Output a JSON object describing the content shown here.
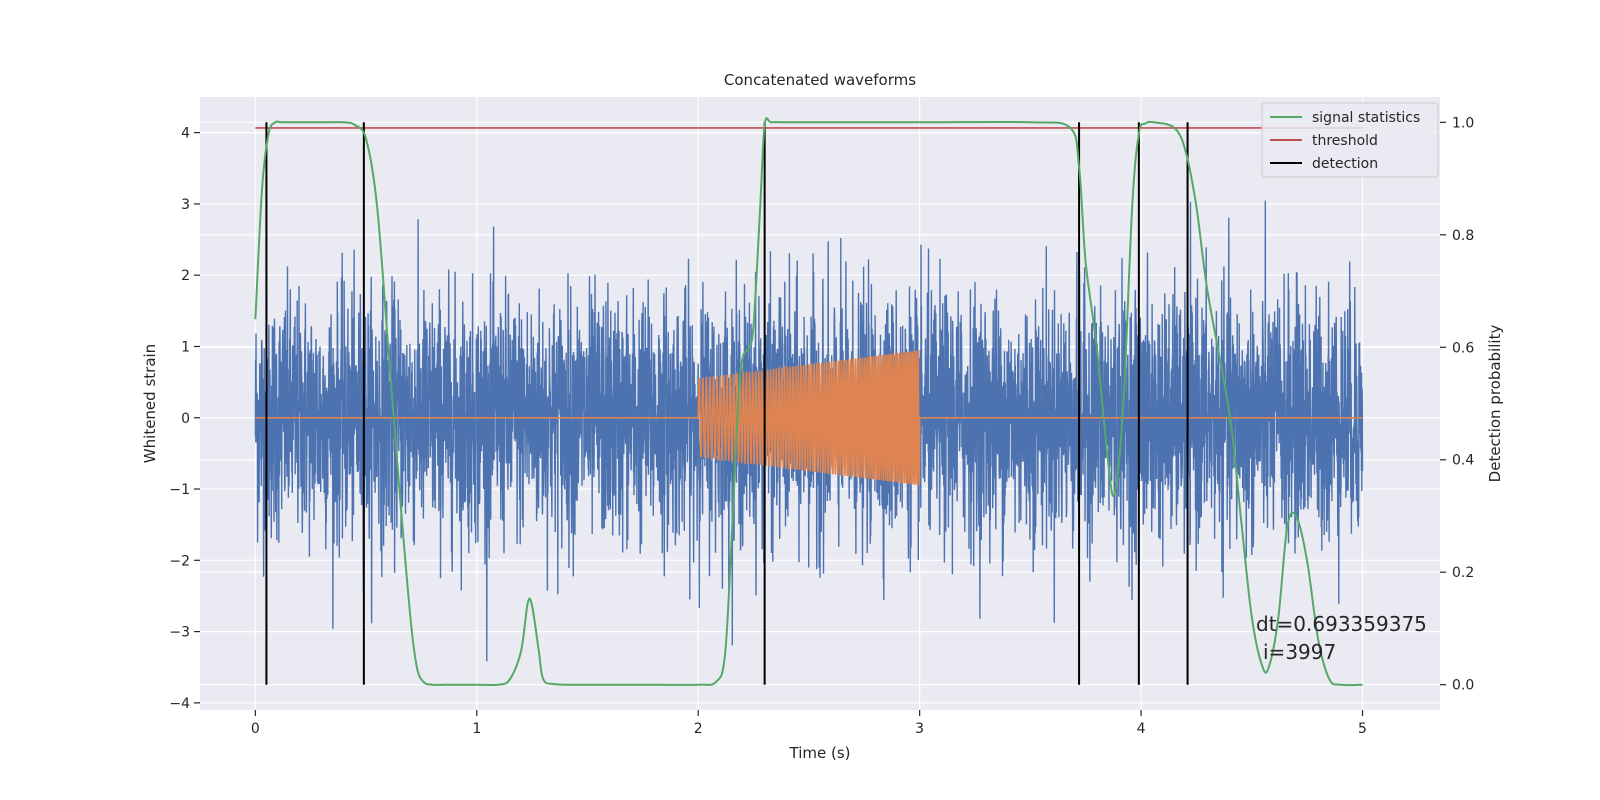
{
  "chart_data": {
    "type": "line",
    "title": "Concatenated waveforms",
    "xlabel": "Time (s)",
    "ylabel": "Whitened strain",
    "y2label": "Detection probability",
    "xlim": [
      -0.25,
      5.35
    ],
    "ylim": [
      -4.1,
      4.5
    ],
    "y2lim": [
      -0.045,
      1.045
    ],
    "x_ticks": [
      0,
      1,
      2,
      3,
      4,
      5
    ],
    "y_ticks": [
      -4,
      -3,
      -2,
      -1,
      0,
      1,
      2,
      3,
      4
    ],
    "y2_ticks": [
      0.0,
      0.2,
      0.4,
      0.6,
      0.8,
      1.0
    ],
    "x_tick_labels": [
      "0",
      "1",
      "2",
      "3",
      "4",
      "5"
    ],
    "y_tick_labels": [
      "−4",
      "−3",
      "−2",
      "−1",
      "0",
      "1",
      "2",
      "3",
      "4"
    ],
    "y2_tick_labels": [
      "0.0",
      "0.2",
      "0.4",
      "0.6",
      "0.8",
      "1.0"
    ],
    "grid": true,
    "legend_position": "top-right",
    "colors": {
      "noise": "#4c72b0",
      "signal": "#dd8452",
      "statistics": "#55a868",
      "threshold": "#c44e52",
      "detection": "#000000",
      "background": "#eaeaf2",
      "grid": "#ffffff"
    },
    "noise_series": {
      "x_range": [
        0,
        5
      ],
      "description_color": "noise",
      "envelope_high": 2.5,
      "envelope_low": -2.2
    },
    "signal_series": {
      "x_range": [
        2.0,
        3.0
      ],
      "amplitude_start": 0.55,
      "amplitude_end": 0.95
    },
    "statistics_series": {
      "x": [
        0.0,
        0.03,
        0.06,
        0.09,
        0.12,
        0.2,
        0.3,
        0.4,
        0.45,
        0.5,
        0.55,
        0.6,
        0.65,
        0.7,
        0.73,
        0.76,
        0.8,
        0.9,
        1.0,
        1.1,
        1.15,
        1.2,
        1.23,
        1.25,
        1.28,
        1.3,
        1.35,
        1.5,
        1.8,
        2.0,
        2.08,
        2.12,
        2.15,
        2.18,
        2.2,
        2.23,
        2.25,
        2.28,
        2.3,
        2.33,
        2.4,
        2.6,
        3.0,
        3.5,
        3.68,
        3.72,
        3.75,
        3.8,
        3.85,
        3.88,
        3.92,
        3.96,
        3.99,
        4.02,
        4.06,
        4.15,
        4.2,
        4.25,
        4.3,
        4.4,
        4.45,
        4.5,
        4.55,
        4.58,
        4.62,
        4.66,
        4.7,
        4.75,
        4.8,
        4.85,
        4.9,
        5.0
      ],
      "y": [
        0.65,
        0.88,
        0.98,
        1.0,
        1.0,
        1.0,
        1.0,
        1.0,
        0.995,
        0.97,
        0.85,
        0.6,
        0.35,
        0.12,
        0.03,
        0.005,
        0.0,
        0.0,
        0.0,
        0.0,
        0.01,
        0.06,
        0.145,
        0.14,
        0.06,
        0.01,
        0.001,
        0.0,
        0.0,
        0.0,
        0.005,
        0.05,
        0.25,
        0.5,
        0.58,
        0.6,
        0.64,
        0.85,
        0.995,
        1.0,
        1.0,
        1.0,
        1.0,
        1.0,
        0.99,
        0.92,
        0.75,
        0.6,
        0.4,
        0.34,
        0.5,
        0.85,
        0.98,
        0.998,
        1.0,
        0.99,
        0.95,
        0.85,
        0.7,
        0.48,
        0.3,
        0.12,
        0.03,
        0.035,
        0.12,
        0.28,
        0.3,
        0.22,
        0.08,
        0.01,
        0.0,
        0.0
      ]
    },
    "threshold_value": 0.99,
    "threshold_x_range": [
      0,
      5
    ],
    "detections_x": [
      0.05,
      0.49,
      2.3,
      3.72,
      3.99,
      4.21
    ],
    "legend": {
      "items": [
        {
          "label": "signal statistics",
          "color": "#55a868"
        },
        {
          "label": "threshold",
          "color": "#c44e52"
        },
        {
          "label": "detection",
          "color": "#000000"
        }
      ]
    },
    "annotation": {
      "dt": "dt=0.693359375",
      "i": "i=3997"
    }
  }
}
